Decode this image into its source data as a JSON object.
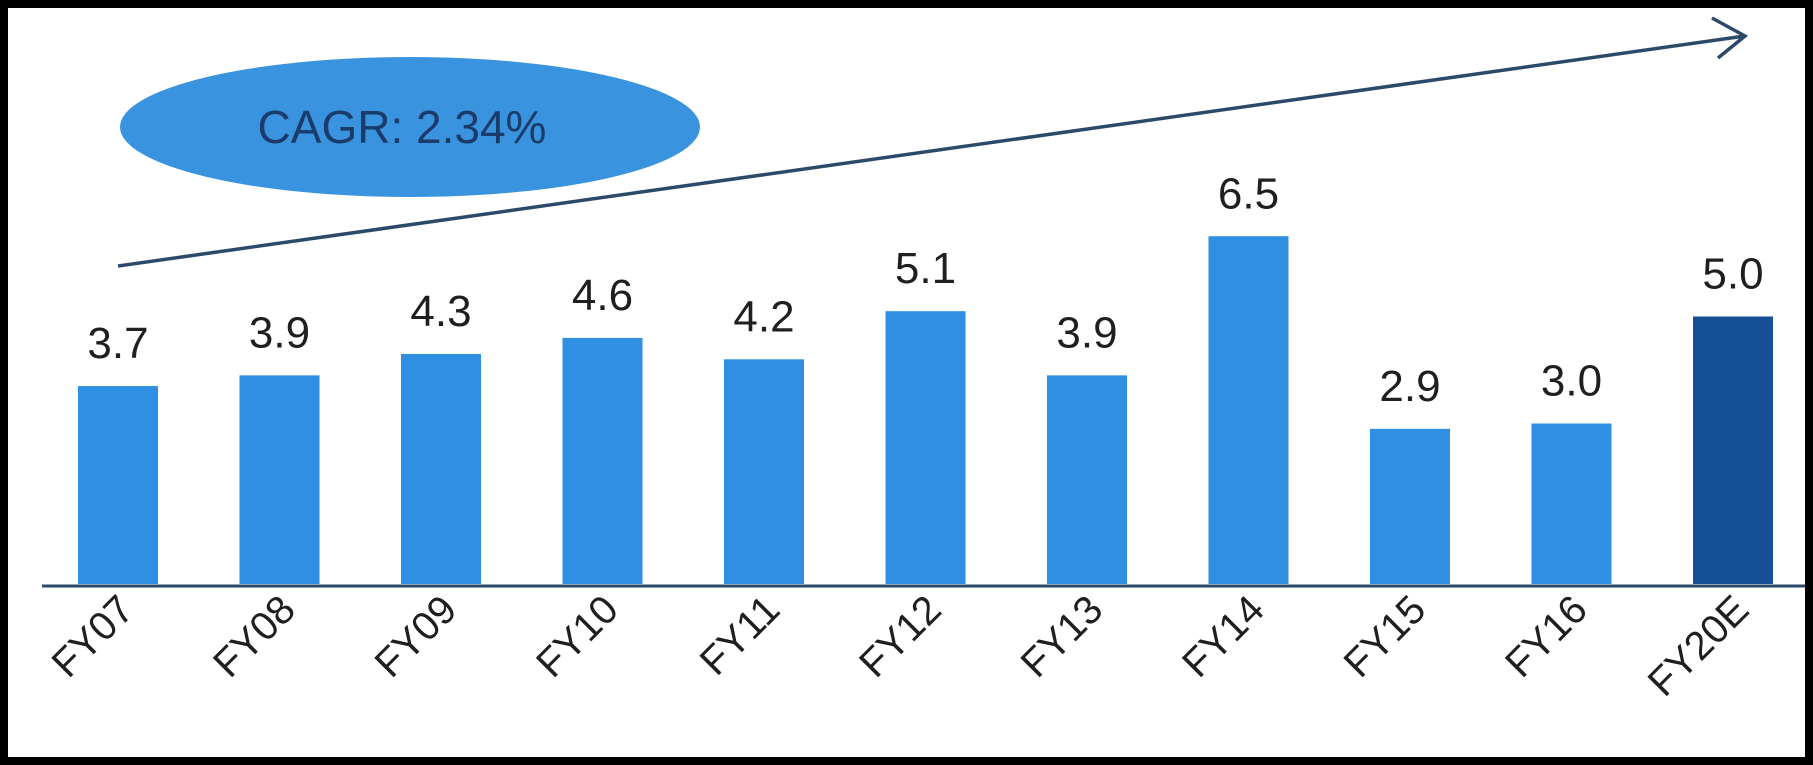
{
  "chart_data": {
    "type": "bar",
    "categories": [
      "FY07",
      "FY08",
      "FY09",
      "FY10",
      "FY11",
      "FY12",
      "FY13",
      "FY14",
      "FY15",
      "FY16",
      "FY20E"
    ],
    "values": [
      3.7,
      3.9,
      4.3,
      4.6,
      4.2,
      5.1,
      3.9,
      6.5,
      2.9,
      3.0,
      5.0
    ],
    "data_labels": [
      "3.7",
      "3.9",
      "4.3",
      "4.6",
      "4.2",
      "5.1",
      "3.9",
      "6.5",
      "2.9",
      "3.0",
      "5.0"
    ],
    "highlighted_category": "FY20E",
    "annotation": "CAGR: 2.34%",
    "title": "",
    "xlabel": "",
    "ylabel": "",
    "ylim": [
      0,
      7
    ],
    "grid": false,
    "legend": "none"
  },
  "colors": {
    "background": "#ffffff",
    "frame": "#000000",
    "bar": "#2f8fe3",
    "bar_highlight": "#154f95",
    "axis": "#2b4a6a",
    "trend_arrow": "#2b4a6a",
    "ellipse": "#3a93de"
  }
}
